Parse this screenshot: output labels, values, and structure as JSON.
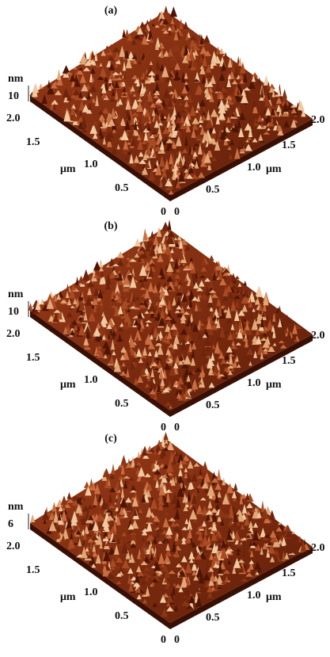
{
  "panels": [
    {
      "label": "(a)",
      "z_unit": "nm",
      "z_tick": "10",
      "left_axis": {
        "ticks": [
          "2.0",
          "1.5",
          "1.0",
          "0.5",
          "0"
        ],
        "unit": "μm"
      },
      "right_axis": {
        "ticks": [
          "0",
          "0.5",
          "1.0",
          "1.5",
          "2.0"
        ],
        "unit": "μm"
      }
    },
    {
      "label": "(b)",
      "z_unit": "nm",
      "z_tick": "10",
      "left_axis": {
        "ticks": [
          "2.0",
          "1.5",
          "1.0",
          "0.5",
          "0"
        ],
        "unit": "μm"
      },
      "right_axis": {
        "ticks": [
          "0",
          "0.5",
          "1.0",
          "1.5",
          "2.0"
        ],
        "unit": "μm"
      }
    },
    {
      "label": "(c)",
      "z_unit": "nm",
      "z_tick": "6",
      "left_axis": {
        "ticks": [
          "2.0",
          "1.5",
          "1.0",
          "0.5",
          "0"
        ],
        "unit": "μm"
      },
      "right_axis": {
        "ticks": [
          "0",
          "0.5",
          "1.0",
          "1.5",
          "2.0"
        ],
        "unit": "μm"
      }
    }
  ]
}
